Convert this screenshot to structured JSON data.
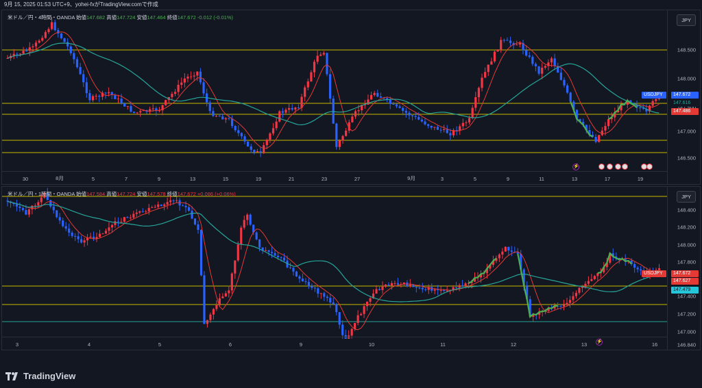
{
  "header": {
    "text": "9月 15, 2025 01:53 UTC+9、yohei-fxがTradingView.comで作成"
  },
  "pane1": {
    "symbol": "米ドル／円・4時間・OANDA",
    "ohlc": {
      "o_label": "始値",
      "o": "147.682",
      "h_label": "高値",
      "h": "147.724",
      "l_label": "安値",
      "l": "147.464",
      "c_label": "終値",
      "c": "147.672",
      "chg": "-0.012 (-0.01%)"
    },
    "currency": "JPY",
    "price_ticks": [
      "148.500",
      "148.000",
      "147.500",
      "147.000",
      "146.500"
    ],
    "price_tag_symbol": "USDJPY",
    "price_tag_values": [
      "147.672",
      "147.616",
      "147.486"
    ],
    "time_labels": [
      "30",
      "8月",
      "5",
      "7",
      "9",
      "13",
      "15",
      "19",
      "21",
      "23",
      "27",
      "9月",
      "3",
      "5",
      "9",
      "11",
      "13",
      "17",
      "19"
    ]
  },
  "pane2": {
    "symbol": "米ドル／円・1時間・OANDA",
    "ohlc": {
      "o_label": "始値",
      "o": "147.584",
      "h_label": "高値",
      "h": "147.724",
      "l_label": "安値",
      "l": "147.578",
      "c_label": "終値",
      "c": "147.672",
      "chg": "+0.086 (+0.06%)"
    },
    "currency": "JPY",
    "price_ticks": [
      "148.400",
      "148.200",
      "148.000",
      "147.800",
      "147.600",
      "147.400",
      "147.200",
      "147.000",
      "146.840"
    ],
    "price_tag_symbol": "USDJPY",
    "price_tag_values": [
      "147.672",
      "147.627",
      "147.479"
    ],
    "time_labels": [
      "3",
      "4",
      "5",
      "6",
      "9",
      "10",
      "11",
      "12",
      "13",
      "16"
    ]
  },
  "footer": {
    "brand": "TradingView"
  },
  "colors": {
    "bg": "#131722",
    "up": "#f23645",
    "down": "#2962ff",
    "ma_red": "#e53935",
    "ma_teal": "#26a69a",
    "level": "#c8b900",
    "hl_green": "#4caf50"
  }
}
